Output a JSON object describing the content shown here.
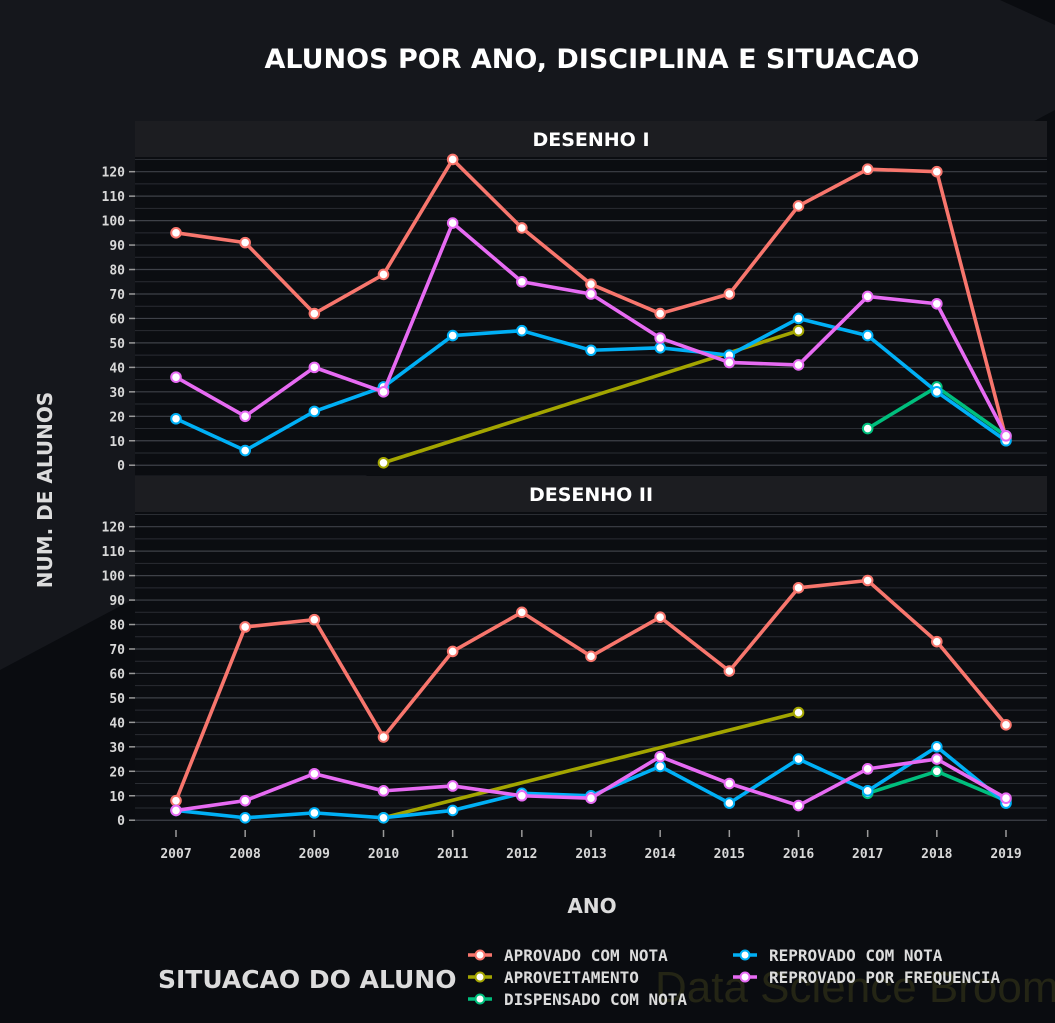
{
  "chart_data": {
    "type": "line",
    "title": "ALUNOS POR ANO, DISCIPLINA E SITUACAO",
    "xlabel": "ANO",
    "ylabel": "NUM. DE ALUNOS",
    "x": [
      2007,
      2008,
      2009,
      2010,
      2011,
      2012,
      2013,
      2014,
      2015,
      2016,
      2017,
      2018,
      2019
    ],
    "x_tick_labels": [
      "2007",
      "2008",
      "2009",
      "2010",
      "2011",
      "2012",
      "2013",
      "2014",
      "2015",
      "2016",
      "2017",
      "2018",
      "2019"
    ],
    "y_ticks": [
      0,
      10,
      20,
      30,
      40,
      50,
      60,
      70,
      80,
      90,
      100,
      110,
      120
    ],
    "y_tick_labels": [
      "0",
      "10",
      "20",
      "30",
      "40",
      "50",
      "60",
      "70",
      "80",
      "90",
      "100",
      "110",
      "120"
    ],
    "ylim": [
      -4,
      126
    ],
    "grid": true,
    "legend": {
      "title": "SITUACAO DO ALUNO",
      "placement": "bottom"
    },
    "watermark": "Data Science Broom",
    "series_meta": [
      {
        "key": "aprovado",
        "name": "APROVADO COM NOTA",
        "color": "#f8766d"
      },
      {
        "key": "aproveitamento",
        "name": "APROVEITAMENTO",
        "color": "#a3a500"
      },
      {
        "key": "dispensado",
        "name": "DISPENSADO COM NOTA",
        "color": "#00bf7d"
      },
      {
        "key": "reprovado_nota",
        "name": "REPROVADO COM NOTA",
        "color": "#00b0f6"
      },
      {
        "key": "reprovado_freq",
        "name": "REPROVADO POR FREQUENCIA",
        "color": "#e76bf3"
      }
    ],
    "panels": [
      {
        "strip": "DESENHO I",
        "series": [
          {
            "key": "aprovado",
            "points": [
              [
                2007,
                95
              ],
              [
                2008,
                91
              ],
              [
                2009,
                62
              ],
              [
                2010,
                78
              ],
              [
                2011,
                125
              ],
              [
                2012,
                97
              ],
              [
                2013,
                74
              ],
              [
                2014,
                62
              ],
              [
                2015,
                70
              ],
              [
                2016,
                106
              ],
              [
                2017,
                121
              ],
              [
                2018,
                120
              ],
              [
                2019,
                11
              ]
            ]
          },
          {
            "key": "aproveitamento",
            "points": [
              [
                2010,
                1
              ],
              [
                2016,
                55
              ]
            ]
          },
          {
            "key": "dispensado",
            "points": [
              [
                2017,
                15
              ],
              [
                2018,
                32
              ],
              [
                2019,
                12
              ]
            ]
          },
          {
            "key": "reprovado_nota",
            "points": [
              [
                2007,
                19
              ],
              [
                2008,
                6
              ],
              [
                2009,
                22
              ],
              [
                2010,
                32
              ],
              [
                2011,
                53
              ],
              [
                2012,
                55
              ],
              [
                2013,
                47
              ],
              [
                2014,
                48
              ],
              [
                2015,
                45
              ],
              [
                2016,
                60
              ],
              [
                2017,
                53
              ],
              [
                2018,
                30
              ],
              [
                2019,
                10
              ]
            ]
          },
          {
            "key": "reprovado_freq",
            "points": [
              [
                2007,
                36
              ],
              [
                2008,
                20
              ],
              [
                2009,
                40
              ],
              [
                2010,
                30
              ],
              [
                2011,
                99
              ],
              [
                2012,
                75
              ],
              [
                2013,
                70
              ],
              [
                2014,
                52
              ],
              [
                2015,
                42
              ],
              [
                2016,
                41
              ],
              [
                2017,
                69
              ],
              [
                2018,
                66
              ],
              [
                2019,
                12
              ]
            ]
          }
        ]
      },
      {
        "strip": "DESENHO II",
        "series": [
          {
            "key": "aprovado",
            "points": [
              [
                2007,
                8
              ],
              [
                2008,
                79
              ],
              [
                2009,
                82
              ],
              [
                2010,
                34
              ],
              [
                2011,
                69
              ],
              [
                2012,
                85
              ],
              [
                2013,
                67
              ],
              [
                2014,
                83
              ],
              [
                2015,
                61
              ],
              [
                2016,
                95
              ],
              [
                2017,
                98
              ],
              [
                2018,
                73
              ],
              [
                2019,
                39
              ]
            ]
          },
          {
            "key": "aproveitamento",
            "points": [
              [
                2010,
                1
              ],
              [
                2016,
                44
              ]
            ]
          },
          {
            "key": "dispensado",
            "points": [
              [
                2017,
                11
              ],
              [
                2018,
                20
              ],
              [
                2019,
                8
              ]
            ]
          },
          {
            "key": "reprovado_nota",
            "points": [
              [
                2007,
                4
              ],
              [
                2008,
                1
              ],
              [
                2009,
                3
              ],
              [
                2010,
                1
              ],
              [
                2011,
                4
              ],
              [
                2012,
                11
              ],
              [
                2013,
                10
              ],
              [
                2014,
                22
              ],
              [
                2015,
                7
              ],
              [
                2016,
                25
              ],
              [
                2017,
                12
              ],
              [
                2018,
                30
              ],
              [
                2019,
                7
              ]
            ]
          },
          {
            "key": "reprovado_freq",
            "points": [
              [
                2007,
                4
              ],
              [
                2008,
                8
              ],
              [
                2009,
                19
              ],
              [
                2010,
                12
              ],
              [
                2011,
                14
              ],
              [
                2012,
                10
              ],
              [
                2013,
                9
              ],
              [
                2014,
                26
              ],
              [
                2015,
                15
              ],
              [
                2016,
                6
              ],
              [
                2017,
                21
              ],
              [
                2018,
                25
              ],
              [
                2019,
                9
              ]
            ]
          }
        ]
      }
    ]
  }
}
